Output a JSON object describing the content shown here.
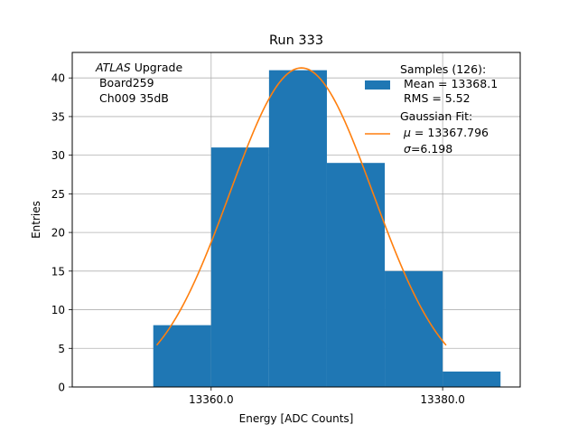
{
  "chart_data": {
    "type": "bar",
    "title": "Run 333",
    "xlabel": "Energy [ADC Counts]",
    "ylabel": "Entries",
    "xlim": [
      13348.0,
      13386.7
    ],
    "ylim": [
      0,
      43.3
    ],
    "xticks": [
      13360.0,
      13380.0
    ],
    "xtick_labels": [
      "13360.0",
      "13380.0"
    ],
    "yticks": [
      0,
      5,
      10,
      15,
      20,
      25,
      30,
      35,
      40
    ],
    "grid": true,
    "bins": [
      {
        "x0": 13355.0,
        "x1": 13360.0,
        "count": 8
      },
      {
        "x0": 13360.0,
        "x1": 13365.0,
        "count": 31
      },
      {
        "x0": 13365.0,
        "x1": 13370.0,
        "count": 41
      },
      {
        "x0": 13370.0,
        "x1": 13375.0,
        "count": 29
      },
      {
        "x0": 13375.0,
        "x1": 13380.0,
        "count": 15
      },
      {
        "x0": 13380.0,
        "x1": 13385.0,
        "count": 2
      }
    ],
    "fit": {
      "mu": 13367.796,
      "sigma": 6.198,
      "amplitude": 41.3,
      "x_range": [
        13355.3,
        13380.3
      ]
    },
    "colors": {
      "histogram": "#1f77b4",
      "fit": "#ff7f0e",
      "grid": "#b0b0b0"
    },
    "annotation": {
      "line1_italic": "ATLAS",
      "line1_rest": " Upgrade",
      "line2": " Board259",
      "line3": " Ch009 35dB"
    },
    "legend": {
      "placement": "top-right",
      "samples": {
        "label": "Samples (126):",
        "mean": " Mean = 13368.1",
        "rms": " RMS = 5.52"
      },
      "fit": {
        "label": "Gaussian Fit:",
        "mu_symbol": "μ",
        "mu_text": " = 13367.796",
        "sigma_symbol": "σ",
        "sigma_text": "=6.198"
      }
    }
  }
}
